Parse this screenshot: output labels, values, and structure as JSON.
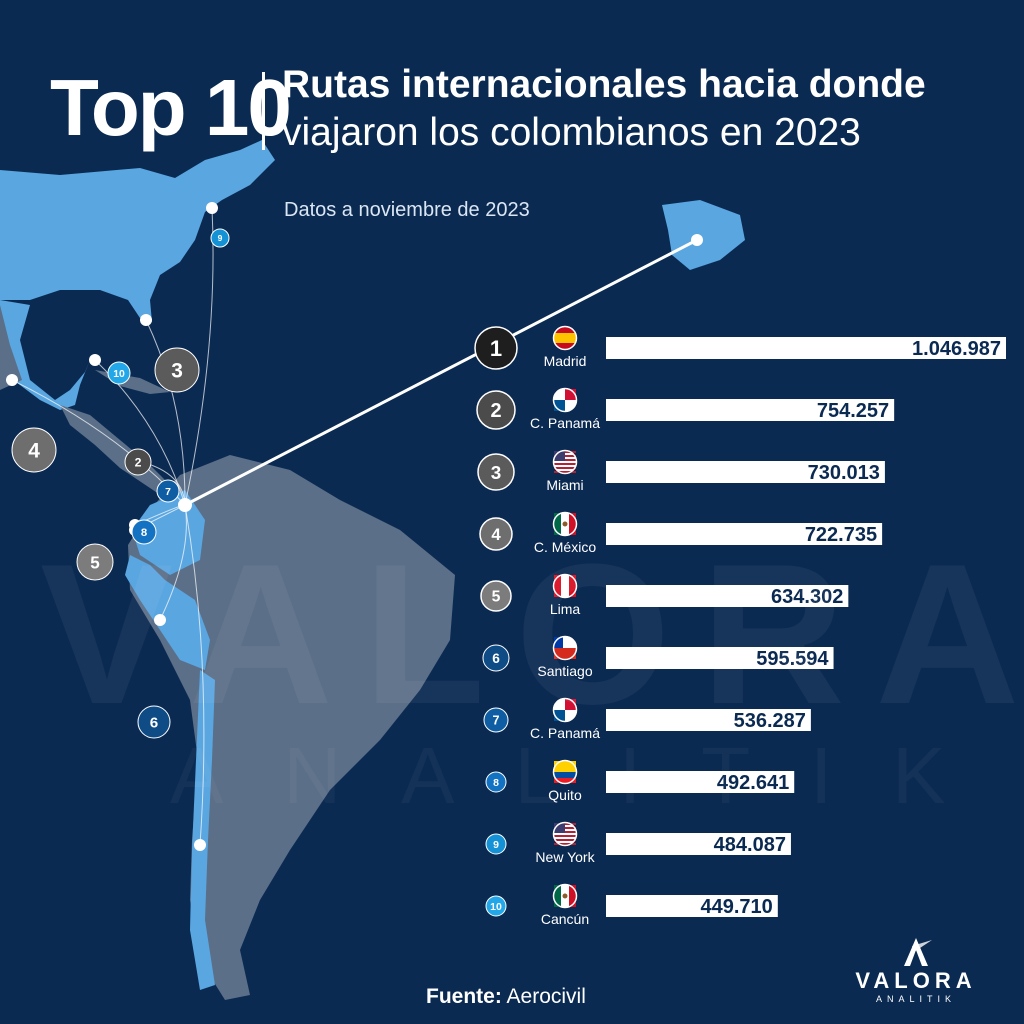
{
  "header": {
    "top_label": "Top 10",
    "title_line1": "Rutas internacionales hacia donde",
    "title_line2": "viajaron los colombianos en 2023",
    "subtitle": "Datos a noviembre de 2023"
  },
  "footer": {
    "source_label": "Fuente:",
    "source_value": "Aerocivil"
  },
  "branding": {
    "logo_word": "VALORA",
    "logo_sub": "ANALITIK",
    "watermark_word": "VALORA",
    "watermark_sub": "ANALITIK"
  },
  "colors": {
    "background": "#0b2a52",
    "bar": "#ffffff",
    "value_text": "#0b2a52",
    "land_highlight": "#5aa6e0",
    "land_other": "#5b6f88",
    "rank_colors": {
      "1": "#1e1e1e",
      "2": "#4b4b4b",
      "3": "#5b5b5b",
      "4": "#6e6e6e",
      "5": "#7c7c7c",
      "6": "#0f4c86",
      "7": "#0f5ea3",
      "8": "#1373c2",
      "9": "#1592d6",
      "10": "#22a8e8"
    }
  },
  "chart_data": {
    "type": "bar",
    "orientation": "horizontal",
    "title": "Rutas internacionales hacia donde viajaron los colombianos en 2023",
    "categories": [
      "Madrid",
      "C. Panamá",
      "Miami",
      "C. México",
      "Lima",
      "Santiago",
      "C. Panamá",
      "Quito",
      "New York",
      "Cancún"
    ],
    "ranks": [
      "1",
      "2",
      "3",
      "4",
      "5",
      "6",
      "7",
      "8",
      "9",
      "10"
    ],
    "values": [
      1046987,
      754257,
      730013,
      722735,
      634302,
      595594,
      536287,
      492641,
      484087,
      449710
    ],
    "value_labels": [
      "1.046.987",
      "754.257",
      "730.013",
      "722.735",
      "634.302",
      "595.594",
      "536.287",
      "492.641",
      "484.087",
      "449.710"
    ],
    "flags": [
      "spain-flag-icon",
      "panama-flag-icon",
      "usa-flag-icon",
      "mexico-flag-icon",
      "peru-flag-icon",
      "chile-flag-icon",
      "panama-flag-icon",
      "ecuador-flag-icon",
      "usa-flag-icon",
      "mexico-flag-icon"
    ],
    "xlim": [
      0,
      1046987
    ],
    "grid": false,
    "legend": "none"
  },
  "map": {
    "origin": "Bogotá",
    "route_ranks": [
      "1",
      "2",
      "3",
      "4",
      "5",
      "6",
      "7",
      "8",
      "9",
      "10"
    ]
  }
}
